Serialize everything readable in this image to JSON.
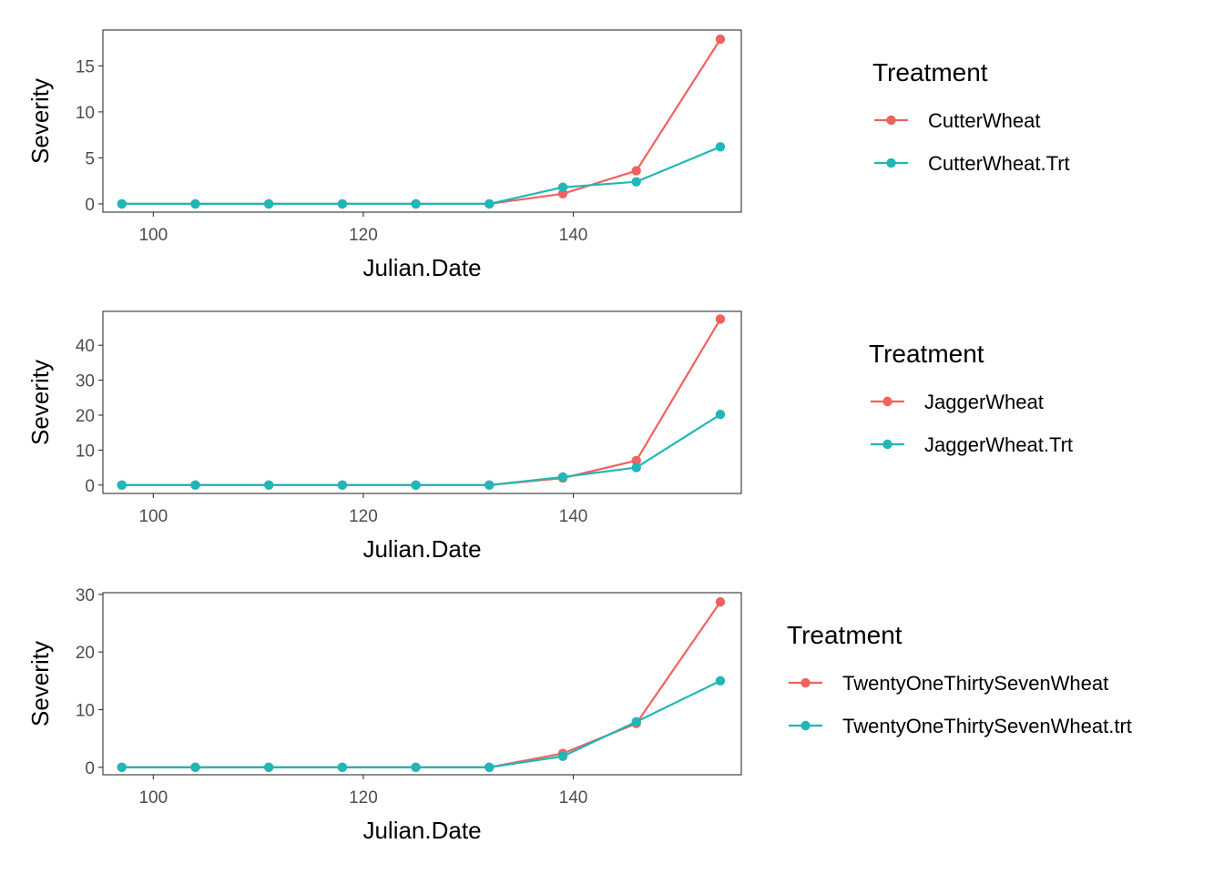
{
  "colors": {
    "series1": "#F0625E",
    "series2": "#1FB7B7",
    "axis": "#333333",
    "tick_text": "#4D4D4D",
    "title_text": "#000000"
  },
  "chart_data": [
    {
      "type": "line",
      "xlabel": "Julian.Date",
      "ylabel": "Severity",
      "xlim": [
        95.2,
        156.0
      ],
      "ylim": [
        -0.9,
        18.9
      ],
      "xticks": [
        100,
        120,
        140
      ],
      "yticks": [
        0,
        5,
        10,
        15
      ],
      "grid": false,
      "legend": {
        "title": "Treatment",
        "position": "right"
      },
      "x": [
        97,
        104,
        111,
        118,
        125,
        132,
        139,
        146,
        154
      ],
      "series": [
        {
          "name": "CutterWheat",
          "values": [
            0,
            0,
            0,
            0,
            0,
            0,
            1.1,
            3.6,
            17.9
          ]
        },
        {
          "name": "CutterWheat.Trt",
          "values": [
            0,
            0,
            0,
            0,
            0,
            0,
            1.8,
            2.4,
            6.2
          ]
        }
      ]
    },
    {
      "type": "line",
      "xlabel": "Julian.Date",
      "ylabel": "Severity",
      "xlim": [
        95.2,
        156.0
      ],
      "ylim": [
        -2.4,
        49.7
      ],
      "xticks": [
        100,
        120,
        140
      ],
      "yticks": [
        0,
        10,
        20,
        30,
        40
      ],
      "grid": false,
      "legend": {
        "title": "Treatment",
        "position": "right"
      },
      "x": [
        97,
        104,
        111,
        118,
        125,
        132,
        139,
        146,
        154
      ],
      "series": [
        {
          "name": "JaggerWheat",
          "values": [
            0,
            0,
            0,
            0,
            0,
            0,
            2.0,
            7.0,
            47.5
          ]
        },
        {
          "name": "JaggerWheat.Trt",
          "values": [
            0,
            0,
            0,
            0,
            0,
            0,
            2.3,
            5.0,
            20.2
          ]
        }
      ]
    },
    {
      "type": "line",
      "xlabel": "Julian.Date",
      "ylabel": "Severity",
      "xlim": [
        95.2,
        156.0
      ],
      "ylim": [
        -1.3,
        30.3
      ],
      "xticks": [
        100,
        120,
        140
      ],
      "yticks": [
        0,
        10,
        20,
        30
      ],
      "grid": false,
      "legend": {
        "title": "Treatment",
        "position": "right"
      },
      "x": [
        97,
        104,
        111,
        118,
        125,
        132,
        139,
        146,
        154
      ],
      "series": [
        {
          "name": "TwentyOneThirtySevenWheat",
          "values": [
            0,
            0,
            0,
            0,
            0,
            0,
            2.4,
            7.6,
            28.7
          ]
        },
        {
          "name": "TwentyOneThirtySevenWheat.trt",
          "values": [
            0,
            0,
            0,
            0,
            0,
            0,
            1.9,
            7.9,
            15.0
          ]
        }
      ]
    }
  ]
}
